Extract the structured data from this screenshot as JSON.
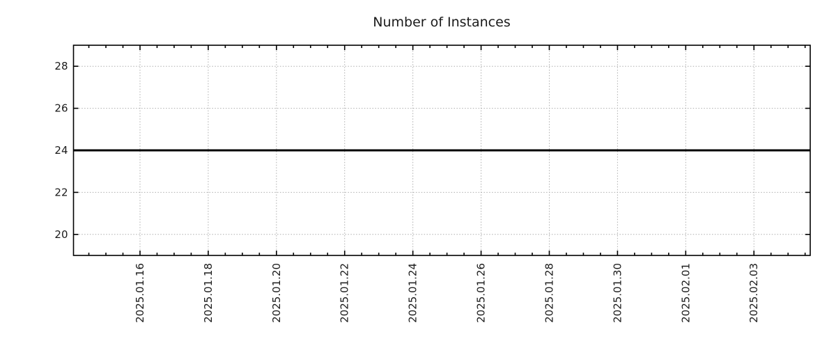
{
  "chart_data": {
    "type": "line",
    "title": "Number of Instances",
    "x_axis": {
      "tick_labels": [
        "2025.01.16",
        "2025.01.18",
        "2025.01.20",
        "2025.01.22",
        "2025.01.24",
        "2025.01.26",
        "2025.01.28",
        "2025.01.30",
        "2025.02.01",
        "2025.02.03"
      ],
      "major_positions_days": [
        2,
        4,
        6,
        8,
        10,
        12,
        14,
        16,
        18,
        20
      ],
      "minor_interval_days": 0.5,
      "range_days": [
        0.05,
        21.65
      ],
      "label_rotation_deg": -90
    },
    "y_axis": {
      "tick_labels": [
        "20",
        "22",
        "24",
        "26",
        "28"
      ],
      "tick_values": [
        20,
        22,
        24,
        26,
        28
      ],
      "range": [
        19,
        29
      ]
    },
    "series": [
      {
        "name": "Number of Instances",
        "color": "#000000",
        "line_width": 3,
        "constant_value": 24,
        "points_days_value": [
          [
            0.05,
            24
          ],
          [
            21.65,
            24
          ]
        ]
      }
    ],
    "grid": {
      "visible": true,
      "line_style": "dotted",
      "color": "#adadad"
    },
    "legend": {
      "visible": false
    },
    "colors": {
      "axis": "#000000",
      "text": "#1a1a1a",
      "background": "#ffffff"
    }
  }
}
